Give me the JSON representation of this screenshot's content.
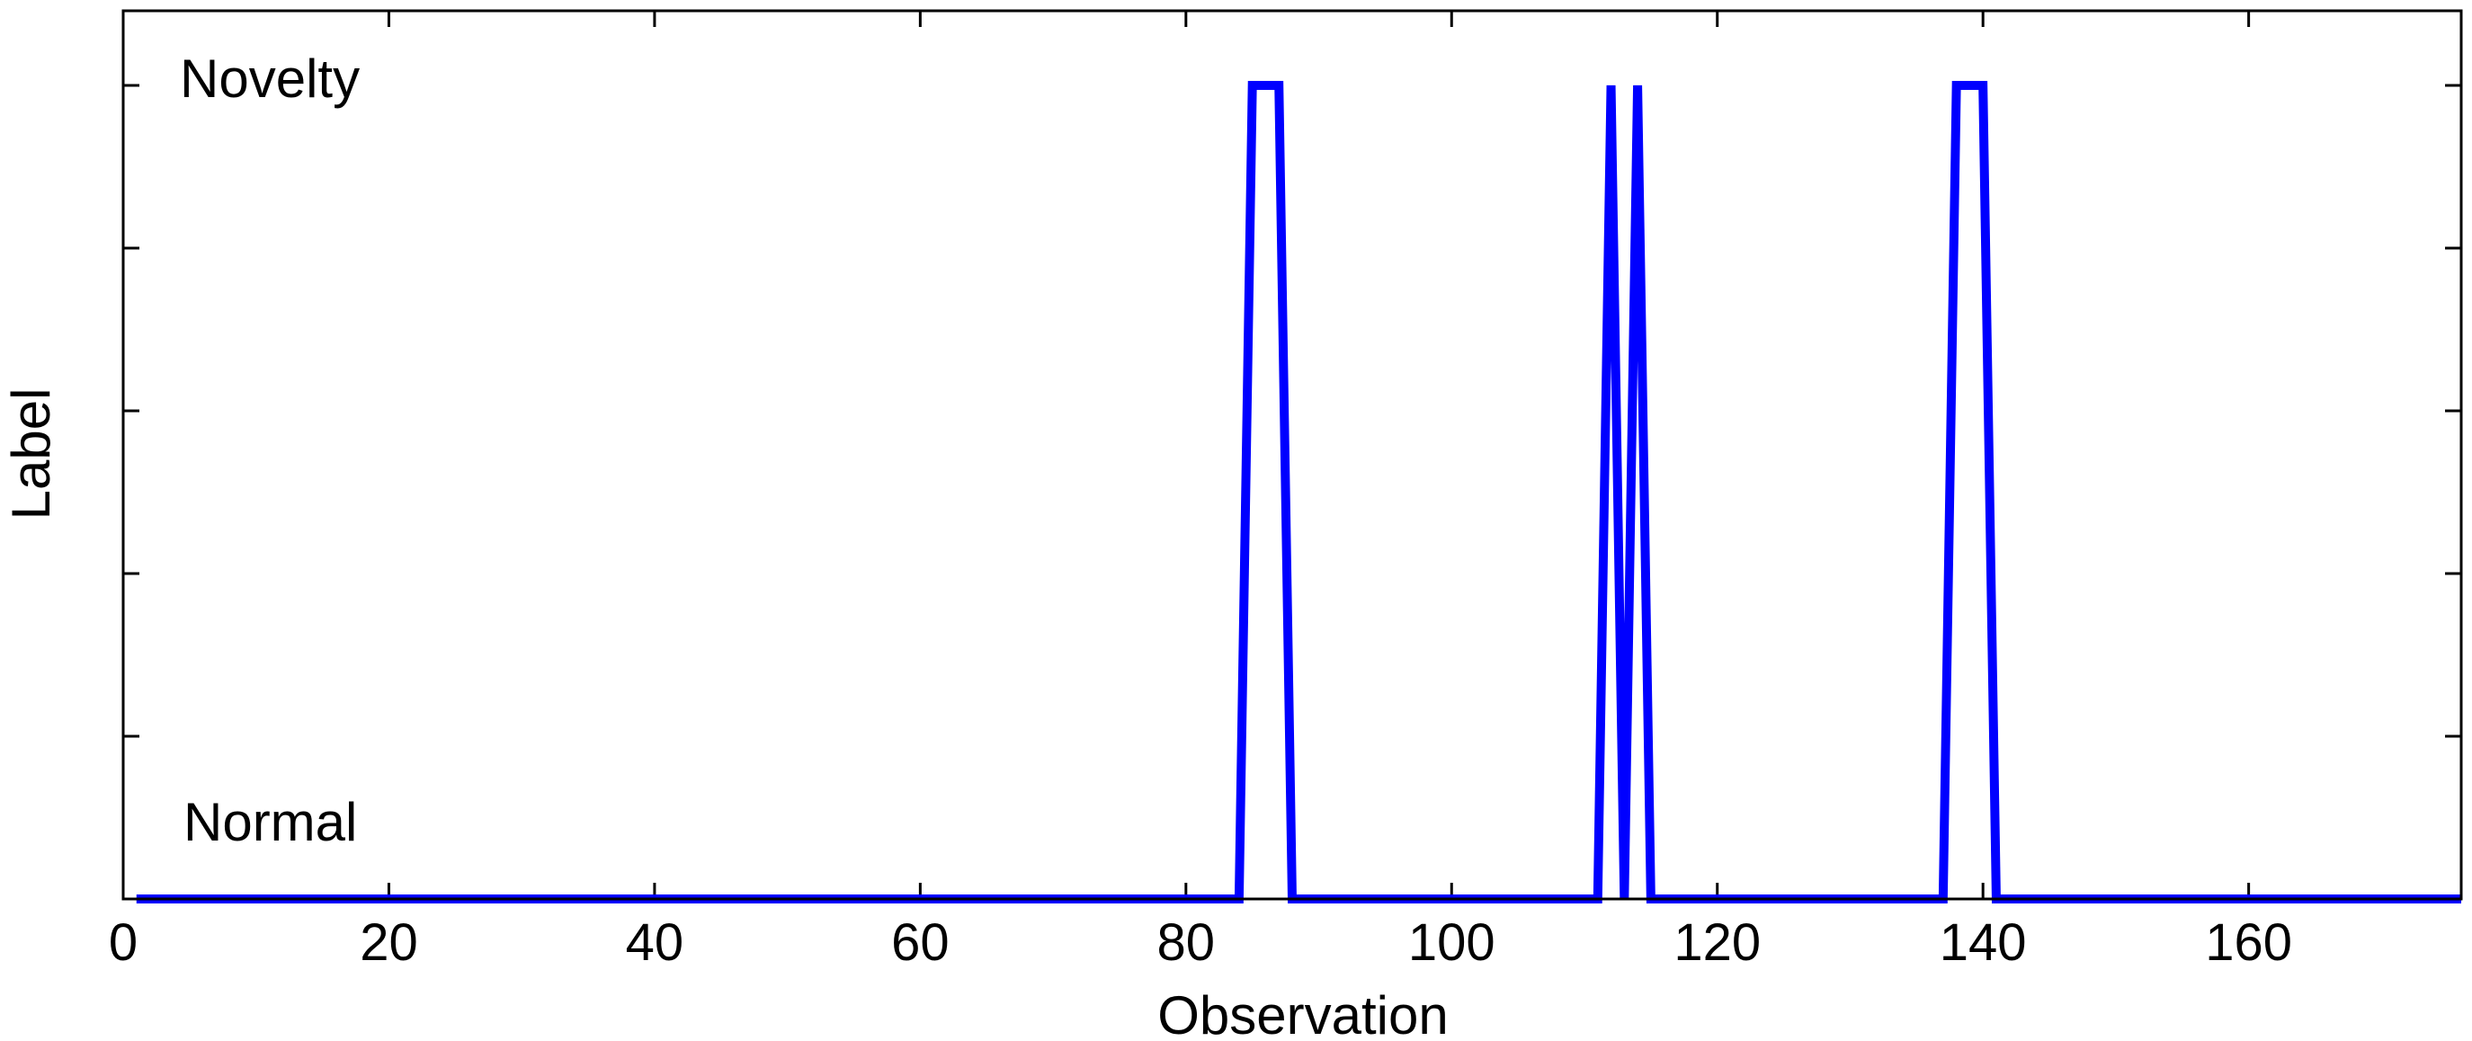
{
  "chart_data": {
    "type": "line",
    "title": "",
    "xlabel": "Observation",
    "ylabel": "Label",
    "xlim": [
      0,
      176
    ],
    "ylim": [
      0,
      1
    ],
    "x_ticks": [
      0,
      20,
      40,
      60,
      80,
      100,
      120,
      140,
      160
    ],
    "y_ticks": [
      0,
      0.2,
      0.4,
      0.6,
      0.8,
      1
    ],
    "y_tick_labels_shown": false,
    "grid": false,
    "annotations": [
      {
        "text": "Novelty",
        "level": 1
      },
      {
        "text": "Normal",
        "level": 0
      }
    ],
    "series": [
      {
        "color": "#0000ff",
        "points": [
          [
            1,
            0
          ],
          [
            84,
            0
          ],
          [
            85,
            1
          ],
          [
            87,
            1
          ],
          [
            88,
            0
          ],
          [
            111,
            0
          ],
          [
            112,
            1
          ],
          [
            113,
            0
          ],
          [
            114,
            1
          ],
          [
            115,
            0
          ],
          [
            137,
            0
          ],
          [
            138,
            1
          ],
          [
            140,
            1
          ],
          [
            141,
            0
          ],
          [
            176,
            0
          ]
        ]
      }
    ]
  }
}
